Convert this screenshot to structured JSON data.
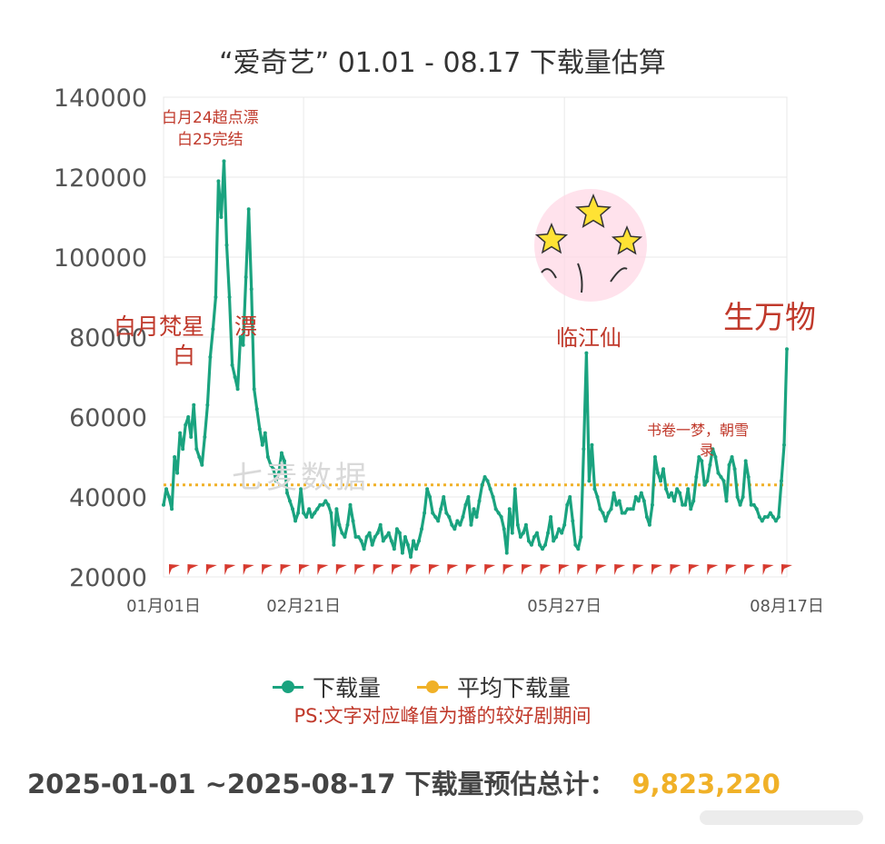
{
  "title": "“爱奇艺” 01.01 - 08.17 下载量估算",
  "watermark": "七麦数据",
  "colors": {
    "series": "#1aa37f",
    "average": "#f0b128",
    "annotation": "#c0392b",
    "marker": "#d63a2f"
  },
  "chart_data": {
    "type": "line",
    "x_tick_labels": [
      "01月01日",
      "02月21日",
      "05月27日",
      "08月17日"
    ],
    "y_tick_labels": [
      "20000",
      "40000",
      "60000",
      "80000",
      "100000",
      "120000",
      "140000"
    ],
    "ylim": [
      20000,
      140000
    ],
    "grid": true,
    "legend_position": "bottom",
    "series": [
      {
        "name": "下载量",
        "values": [
          38000,
          42000,
          40000,
          37000,
          50000,
          46000,
          56000,
          52000,
          58000,
          60000,
          55000,
          63000,
          52000,
          50000,
          48000,
          55000,
          63000,
          75000,
          82000,
          90000,
          119000,
          110000,
          124000,
          103000,
          90000,
          73000,
          70000,
          67000,
          80000,
          78000,
          95000,
          112000,
          92000,
          67000,
          62000,
          57000,
          53000,
          56000,
          50000,
          48000,
          47000,
          44000,
          46000,
          51000,
          49000,
          41000,
          39000,
          37000,
          34000,
          36000,
          42000,
          36000,
          35000,
          37000,
          35000,
          36000,
          37000,
          38000,
          38000,
          39000,
          38000,
          36000,
          28000,
          37000,
          33000,
          31000,
          30000,
          33000,
          38000,
          34000,
          30000,
          30000,
          29000,
          27000,
          30000,
          31000,
          28000,
          30000,
          31000,
          33000,
          29000,
          30000,
          31000,
          29000,
          27000,
          32000,
          31000,
          26000,
          30000,
          28000,
          25000,
          29000,
          27000,
          29000,
          32000,
          36000,
          42000,
          40000,
          36000,
          35000,
          34000,
          37000,
          40000,
          36000,
          35000,
          33000,
          32000,
          34000,
          33000,
          35000,
          38000,
          40000,
          33000,
          37000,
          35000,
          39000,
          43000,
          45000,
          44000,
          42000,
          40000,
          37000,
          36000,
          35000,
          32000,
          26000,
          37000,
          31000,
          42000,
          33000,
          30000,
          31000,
          33000,
          29000,
          28000,
          30000,
          31000,
          28000,
          27000,
          28000,
          31000,
          35000,
          29000,
          30000,
          32000,
          31000,
          33000,
          38000,
          40000,
          34000,
          28000,
          27000,
          30000,
          52000,
          76000,
          44000,
          53000,
          42000,
          40000,
          37000,
          36000,
          34000,
          36000,
          37000,
          41000,
          38000,
          39000,
          36000,
          36000,
          37000,
          37000,
          37000,
          40000,
          39000,
          41000,
          39000,
          35000,
          33000,
          38000,
          50000,
          46000,
          44000,
          47000,
          42000,
          40000,
          41000,
          39000,
          42000,
          41000,
          38000,
          38000,
          42000,
          37000,
          39000,
          45000,
          50000,
          49000,
          43000,
          44000,
          48000,
          52000,
          50000,
          46000,
          45000,
          44000,
          39000,
          48000,
          50000,
          47000,
          40000,
          38000,
          40000,
          49000,
          45000,
          38000,
          38000,
          37000,
          35000,
          34000,
          35000,
          35000,
          36000,
          35000,
          34000,
          35000,
          44000,
          53000,
          77000
        ]
      },
      {
        "name": "平均下载量",
        "values": [
          43000
        ]
      }
    ],
    "markers_per_date_count": 34
  },
  "annotations": {
    "bai24": [
      "白月24超点漂",
      "白25完结"
    ],
    "bai_left": "白月梵星",
    "bai_left2": "白",
    "piao": "漂",
    "linjiang": "临江仙",
    "shengwanwu": "生万物",
    "shujuan": "书卷一梦，朝雪",
    "shujuan2": "录"
  },
  "legend": {
    "series_label": "下载量",
    "average_label": "平均下载量"
  },
  "note": "PS:文字对应峰值为播的较好剧期间",
  "total": {
    "label": "2025-01-01  ~2025-08-17 下载量预估总计：",
    "value": "9,823,220"
  }
}
